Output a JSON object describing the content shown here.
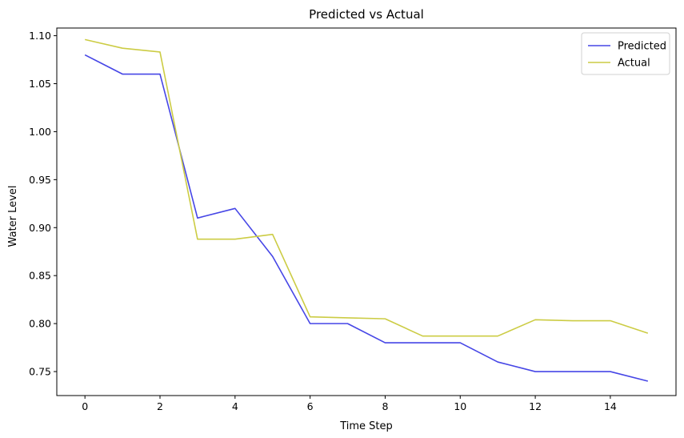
{
  "chart_data": {
    "type": "line",
    "title": "Predicted vs Actual",
    "xlabel": "Time Step",
    "ylabel": "Water Level",
    "xlim": [
      -0.75,
      15.75
    ],
    "ylim": [
      0.725,
      1.108
    ],
    "x_ticks": [
      0,
      2,
      4,
      6,
      8,
      10,
      12,
      14
    ],
    "y_ticks": [
      0.75,
      0.8,
      0.85,
      0.9,
      0.95,
      1.0,
      1.05,
      1.1
    ],
    "x_tick_labels": [
      "0",
      "2",
      "4",
      "6",
      "8",
      "10",
      "12",
      "14"
    ],
    "y_tick_labels": [
      "0.75",
      "0.80",
      "0.85",
      "0.90",
      "0.95",
      "1.00",
      "1.05",
      "1.10"
    ],
    "grid": false,
    "legend_position": "top-right",
    "x": [
      0,
      1,
      2,
      3,
      4,
      5,
      6,
      7,
      8,
      9,
      10,
      11,
      12,
      13,
      14,
      15
    ],
    "series": [
      {
        "name": "Predicted",
        "color": "#4646e6",
        "values": [
          1.08,
          1.06,
          1.06,
          0.91,
          0.92,
          0.87,
          0.8,
          0.8,
          0.78,
          0.78,
          0.78,
          0.76,
          0.75,
          0.75,
          0.75,
          0.74
        ]
      },
      {
        "name": "Actual",
        "color": "#cccc44",
        "values": [
          1.096,
          1.087,
          1.083,
          0.888,
          0.888,
          0.893,
          0.807,
          0.806,
          0.805,
          0.787,
          0.787,
          0.787,
          0.804,
          0.803,
          0.803,
          0.79
        ]
      }
    ]
  }
}
